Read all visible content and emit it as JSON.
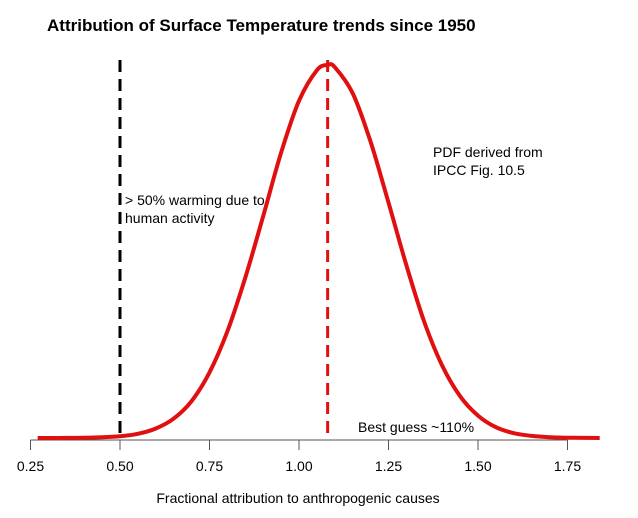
{
  "chart_data": {
    "type": "line",
    "title": "Attribution of Surface Temperature trends since 1950",
    "xlabel": "Fractional attribution to anthropogenic causes",
    "ylabel": "",
    "xlim": [
      0.25,
      1.84
    ],
    "xticks": [
      "0.25",
      "0.50",
      "0.75",
      "1.00",
      "1.25",
      "1.50",
      "1.75"
    ],
    "xtick_values": [
      0.25,
      0.5,
      0.75,
      1.0,
      1.25,
      1.5,
      1.75
    ],
    "y_axis_shown": false,
    "grid": false,
    "series": [
      {
        "color": "#e01010",
        "x": [
          0.27,
          0.3,
          0.35,
          0.4,
          0.45,
          0.5,
          0.55,
          0.6,
          0.65,
          0.7,
          0.75,
          0.8,
          0.85,
          0.9,
          0.95,
          1.0,
          1.05,
          1.08,
          1.1,
          1.15,
          1.2,
          1.25,
          1.3,
          1.35,
          1.4,
          1.45,
          1.5,
          1.55,
          1.6,
          1.65,
          1.7,
          1.75,
          1.8,
          1.84
        ],
        "y": [
          0,
          0,
          0.0002,
          0.0006,
          0.0018,
          0.0046,
          0.0113,
          0.0254,
          0.052,
          0.099,
          0.176,
          0.286,
          0.43,
          0.595,
          0.765,
          0.904,
          0.986,
          1.0,
          0.994,
          0.924,
          0.794,
          0.631,
          0.463,
          0.311,
          0.194,
          0.112,
          0.06,
          0.029,
          0.013,
          0.0056,
          0.0022,
          0.0008,
          0.0003,
          0
        ]
      }
    ],
    "reference_lines": [
      {
        "x": 0.5,
        "color": "#000000",
        "style": "dashed",
        "label": "> 50% warming due to\nhuman activity"
      },
      {
        "x": 1.08,
        "color": "#e01010",
        "style": "dashed",
        "label": "Best guess ~110%"
      }
    ],
    "annotations": [
      {
        "text": "PDF derived from\nIPCC Fig. 10.5"
      }
    ]
  }
}
